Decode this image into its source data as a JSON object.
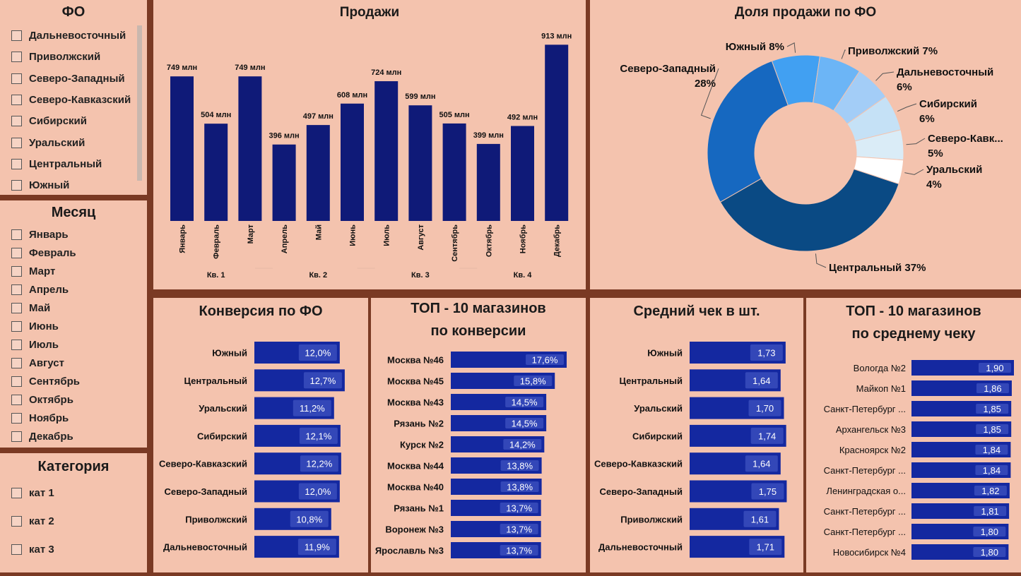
{
  "slicers": {
    "fo": {
      "title": "ФО",
      "items": [
        "Дальневосточный",
        "Приволжский",
        "Северо-Западный",
        "Северо-Кавказский",
        "Сибирский",
        "Уральский",
        "Центральный",
        "Южный"
      ]
    },
    "month": {
      "title": "Месяц",
      "items": [
        "Январь",
        "Февраль",
        "Март",
        "Апрель",
        "Май",
        "Июнь",
        "Июль",
        "Август",
        "Сентябрь",
        "Октябрь",
        "Ноябрь",
        "Декабрь"
      ]
    },
    "category": {
      "title": "Категория",
      "items": [
        "кат 1",
        "кат 2",
        "кат 3"
      ]
    }
  },
  "colors": {
    "bar_dark": "#0f1a78",
    "bar_hbar": "#1428a0",
    "label_box": "#3347b8",
    "panel_bg": "#f4c3ae",
    "frame": "#7a3a24"
  },
  "chart_data": [
    {
      "type": "bar",
      "title": "Продажи",
      "categories": [
        "Январь",
        "Февраль",
        "Март",
        "Апрель",
        "Май",
        "Июнь",
        "Июль",
        "Август",
        "Сентябрь",
        "Октябрь",
        "Ноябрь",
        "Декабрь"
      ],
      "values": [
        749,
        504,
        749,
        396,
        497,
        608,
        724,
        599,
        505,
        399,
        492,
        913
      ],
      "labels": [
        "749 млн",
        "504 млн",
        "749 млн",
        "396 млн",
        "497 млн",
        "608 млн",
        "724 млн",
        "599 млн",
        "505 млн",
        "399 млн",
        "492 млн",
        "913 млн"
      ],
      "groups": [
        {
          "label": "Кв. 1",
          "span": [
            0,
            2
          ]
        },
        {
          "label": "Кв. 2",
          "span": [
            3,
            5
          ]
        },
        {
          "label": "Кв. 3",
          "span": [
            6,
            8
          ]
        },
        {
          "label": "Кв. 4",
          "span": [
            9,
            11
          ]
        }
      ],
      "ylim": [
        0,
        1000
      ]
    },
    {
      "type": "pie",
      "title": "Доля продажи по ФО",
      "slices": [
        {
          "name": "Южный",
          "value": 8,
          "label": "Южный 8%",
          "color": "#41a0f2"
        },
        {
          "name": "Приволжский",
          "value": 7,
          "label": "Приволжский 7%",
          "color": "#6cb5f6"
        },
        {
          "name": "Дальневосточный",
          "value": 6,
          "label_lines": [
            "Дальневосточный",
            "6%"
          ],
          "color": "#a3cdf7"
        },
        {
          "name": "Сибирский",
          "value": 6,
          "label_lines": [
            "Сибирский",
            "6%"
          ],
          "color": "#c5e1f6"
        },
        {
          "name": "Северо-Кавк...",
          "value": 5,
          "label_lines": [
            "Северо-Кавк...",
            "5%"
          ],
          "color": "#daecf7"
        },
        {
          "name": "Уральский",
          "value": 4,
          "label_lines": [
            "Уральский",
            "4%"
          ],
          "color": "#ffffff"
        },
        {
          "name": "Центральный",
          "value": 37,
          "label": "Центральный 37%",
          "color": "#0a4a84"
        },
        {
          "name": "Северо-Западный",
          "value": 28,
          "label_lines": [
            "Северо-Западный",
            "28%"
          ],
          "color": "#1668c0"
        }
      ]
    },
    {
      "type": "bar",
      "orientation": "horizontal",
      "title": "Конверсия по ФО",
      "categories": [
        "Южный",
        "Центральный",
        "Уральский",
        "Сибирский",
        "Северо-Кавказский",
        "Северо-Западный",
        "Приволжский",
        "Дальневосточный"
      ],
      "values": [
        12.0,
        12.7,
        11.2,
        12.1,
        12.2,
        12.0,
        10.8,
        11.9
      ],
      "labels": [
        "12,0%",
        "12,7%",
        "11,2%",
        "12,1%",
        "12,2%",
        "12,0%",
        "10,8%",
        "11,9%"
      ],
      "xlim": [
        0,
        14
      ]
    },
    {
      "type": "bar",
      "orientation": "horizontal",
      "title": "ТОП - 10 магазинов по конверсии",
      "categories": [
        "Москва №46",
        "Москва №45",
        "Москва №43",
        "Рязань №2",
        "Курск №2",
        "Москва №44",
        "Москва №40",
        "Рязань №1",
        "Воронеж №3",
        "Ярославль №3"
      ],
      "values": [
        17.6,
        15.8,
        14.5,
        14.5,
        14.2,
        13.8,
        13.8,
        13.7,
        13.7,
        13.7
      ],
      "labels": [
        "17,6%",
        "15,8%",
        "14,5%",
        "14,5%",
        "14,2%",
        "13,8%",
        "13,8%",
        "13,7%",
        "13,7%",
        "13,7%"
      ],
      "xlim": [
        0,
        17.6
      ]
    },
    {
      "type": "bar",
      "orientation": "horizontal",
      "title": "Средний чек в шт.",
      "categories": [
        "Южный",
        "Центральный",
        "Уральский",
        "Сибирский",
        "Северо-Кавказский",
        "Северо-Западный",
        "Приволжский",
        "Дальневосточный"
      ],
      "values": [
        1.73,
        1.64,
        1.7,
        1.74,
        1.64,
        1.75,
        1.61,
        1.71
      ],
      "labels": [
        "1,73",
        "1,64",
        "1,70",
        "1,74",
        "1,64",
        "1,75",
        "1,61",
        "1,71"
      ],
      "xlim": [
        0,
        2.05
      ]
    },
    {
      "type": "bar",
      "orientation": "horizontal",
      "title": "ТОП - 10 магазинов по среднему чеку",
      "categories": [
        "Вологда №2",
        "Майкоп №1",
        "Санкт-Петербург ...",
        "Архангельск №3",
        "Красноярск №2",
        "Санкт-Петербург ...",
        "Ленинградская о...",
        "Санкт-Петербург ...",
        "Санкт-Петербург ...",
        "Новосибирск №4"
      ],
      "values": [
        1.9,
        1.86,
        1.85,
        1.85,
        1.84,
        1.84,
        1.82,
        1.81,
        1.8,
        1.8
      ],
      "labels": [
        "1,90",
        "1,86",
        "1,85",
        "1,85",
        "1,84",
        "1,84",
        "1,82",
        "1,81",
        "1,80",
        "1,80"
      ],
      "xlim": [
        0,
        1.9
      ]
    }
  ]
}
